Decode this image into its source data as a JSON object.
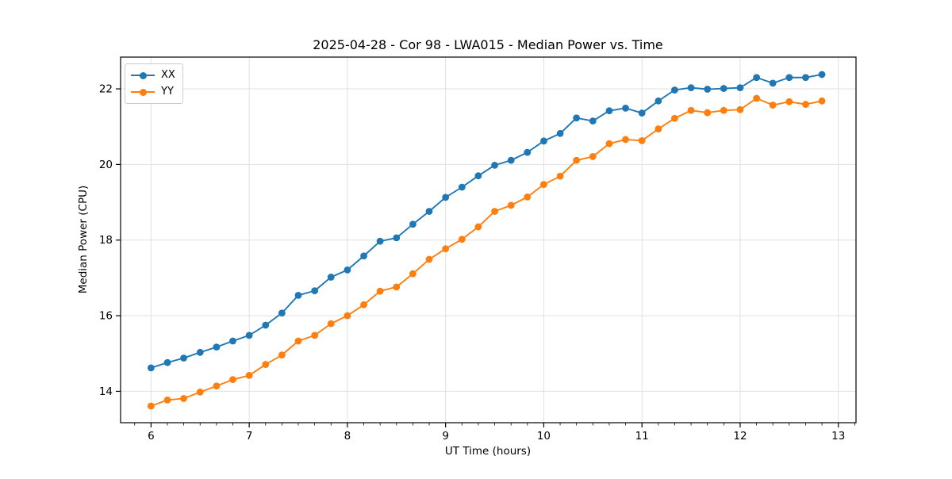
{
  "page": {
    "background": "#ffffff"
  },
  "chart_data": {
    "type": "line",
    "title": "2025-04-28 - Cor 98 - LWA015 - Median Power vs. Time",
    "xlabel": "UT Time (hours)",
    "ylabel": "Median Power (CPU)",
    "xlim": [
      5.69,
      13.18
    ],
    "ylim": [
      13.17,
      22.84
    ],
    "x_ticks": [
      6,
      7,
      8,
      9,
      10,
      11,
      12,
      13
    ],
    "y_ticks": [
      14,
      16,
      18,
      20,
      22
    ],
    "x_minor_step": 0.16666667,
    "grid": true,
    "grid_color": "#e0e0e0",
    "spine_color": "#000000",
    "legend_position": "upper-left",
    "x": [
      6.0,
      6.167,
      6.333,
      6.5,
      6.667,
      6.833,
      7.0,
      7.167,
      7.333,
      7.5,
      7.667,
      7.833,
      8.0,
      8.167,
      8.333,
      8.5,
      8.667,
      8.833,
      9.0,
      9.167,
      9.333,
      9.5,
      9.667,
      9.833,
      10.0,
      10.167,
      10.333,
      10.5,
      10.667,
      10.833,
      11.0,
      11.167,
      11.333,
      11.5,
      11.667,
      11.833,
      12.0,
      12.167,
      12.333,
      12.5,
      12.667,
      12.833
    ],
    "series": [
      {
        "name": "XX",
        "color": "#1f77b4",
        "values": [
          14.62,
          14.76,
          14.88,
          15.03,
          15.17,
          15.33,
          15.48,
          15.75,
          16.07,
          16.54,
          16.66,
          17.02,
          17.21,
          17.58,
          17.97,
          18.06,
          18.42,
          18.76,
          19.13,
          19.4,
          19.7,
          19.98,
          20.11,
          20.32,
          20.62,
          20.82,
          21.23,
          21.15,
          21.42,
          21.49,
          21.36,
          21.68,
          21.97,
          22.03,
          21.99,
          22.01,
          22.03,
          22.3,
          22.15,
          22.3,
          22.3,
          22.38
        ]
      },
      {
        "name": "YY",
        "color": "#ff7f0e",
        "values": [
          13.61,
          13.77,
          13.81,
          13.98,
          14.14,
          14.31,
          14.42,
          14.71,
          14.96,
          15.33,
          15.48,
          15.79,
          16.0,
          16.29,
          16.65,
          16.76,
          17.11,
          17.49,
          17.77,
          18.02,
          18.35,
          18.76,
          18.92,
          19.14,
          19.47,
          19.69,
          20.11,
          20.21,
          20.55,
          20.66,
          20.63,
          20.94,
          21.22,
          21.43,
          21.37,
          21.43,
          21.45,
          21.75,
          21.57,
          21.66,
          21.59,
          21.68
        ]
      }
    ]
  }
}
